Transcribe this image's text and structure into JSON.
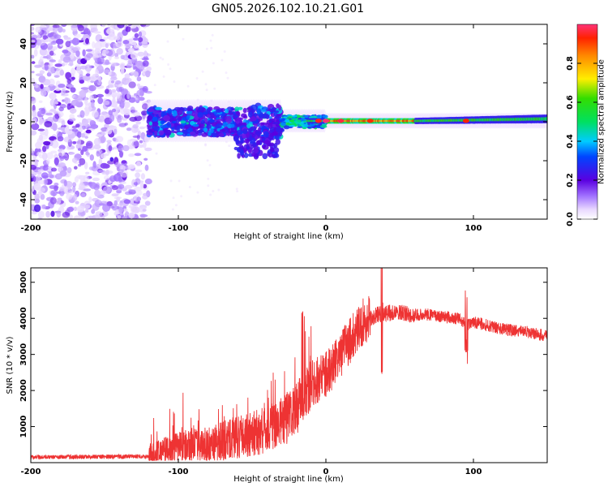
{
  "title": "GN05.2026.102.10.21.G01",
  "colors": {
    "trace": "#ee3333",
    "axis": "#000000",
    "mask": "#ffffff"
  },
  "chart_data": [
    {
      "type": "heatmap",
      "xlabel": "Height of straight line (km)",
      "ylabel": "Frequency (Hz)",
      "xlim": [
        -200,
        150
      ],
      "ylim": [
        -50,
        50
      ],
      "xticks": [
        -200,
        -100,
        0,
        100
      ],
      "xtick_labels": [
        "-200",
        "-100",
        "0",
        "100"
      ],
      "yticks": [
        -40,
        -20,
        0,
        20,
        40
      ],
      "ytick_labels": [
        "-40",
        "-20",
        "0",
        "20",
        "40"
      ],
      "colorbar": {
        "label": "Normalized spectral amplitude",
        "range": [
          0,
          1
        ],
        "ticks": [
          0,
          0.2,
          0.4,
          0.6,
          0.8
        ],
        "tick_labels": [
          "0.0",
          "0.2",
          "0.4",
          "0.6",
          "0.8"
        ]
      },
      "regions": [
        {
          "x_from": -200,
          "x_to": -120,
          "description": "broadband noise",
          "amplitude": 0.12
        },
        {
          "x_from": -120,
          "x_to": -30,
          "description": "spread around 0 Hz",
          "spread_hz": 12,
          "amplitude": 0.3
        },
        {
          "x_from": -30,
          "x_to": 0,
          "description": "narrowing line",
          "spread_hz": 4,
          "amplitude": 0.5
        },
        {
          "x_from": 0,
          "x_to": 60,
          "description": "narrow strong line",
          "spread_hz": 1,
          "amplitude": 0.95
        },
        {
          "x_from": 60,
          "x_to": 150,
          "description": "narrow line",
          "spread_hz": 2,
          "amplitude": 0.55
        }
      ]
    },
    {
      "type": "line",
      "xlabel": "Height of straight line (km)",
      "ylabel": "SNR (10 * v/v)",
      "xlim": [
        -200,
        150
      ],
      "ylim": [
        0,
        5400
      ],
      "xticks": [
        -200,
        -100,
        0,
        100
      ],
      "xtick_labels": [
        "-200",
        "-100",
        "0",
        "100"
      ],
      "yticks": [
        1000,
        2000,
        3000,
        4000,
        5000
      ],
      "ytick_labels": [
        "1000",
        "2000",
        "3000",
        "4000",
        "5000"
      ],
      "series": [
        {
          "name": "SNR",
          "x": [
            -200,
            -180,
            -160,
            -140,
            -120,
            -110,
            -100,
            -80,
            -60,
            -40,
            -30,
            -20,
            -15,
            -10,
            -5,
            0,
            5,
            10,
            15,
            20,
            25,
            30,
            35,
            40,
            50,
            60,
            70,
            80,
            90,
            95,
            100,
            110,
            120,
            130,
            140,
            150
          ],
          "values": [
            150,
            160,
            160,
            170,
            180,
            300,
            450,
            500,
            700,
            900,
            1100,
            1500,
            1900,
            2200,
            2300,
            2450,
            2700,
            3000,
            3300,
            3600,
            3900,
            4000,
            4100,
            4150,
            4150,
            4100,
            4100,
            4050,
            4000,
            3800,
            3900,
            3800,
            3700,
            3650,
            3600,
            3500
          ]
        }
      ]
    }
  ]
}
